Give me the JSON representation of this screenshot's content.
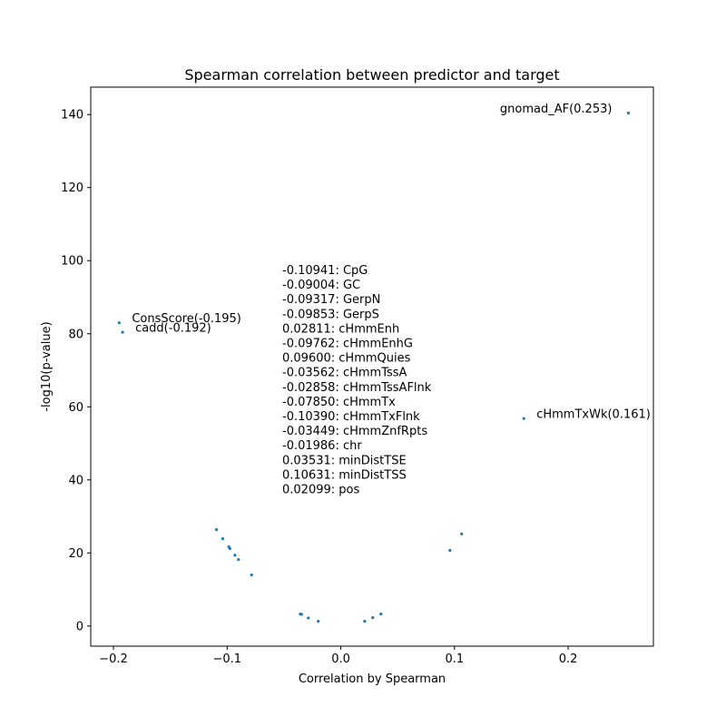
{
  "chart_data": {
    "type": "scatter",
    "title": "Spearman correlation between predictor and target",
    "xlabel": "Correlation by Spearman",
    "ylabel": "-log10(p-value)",
    "xlim": [
      -0.22,
      0.275
    ],
    "ylim": [
      -5.5,
      147.5
    ],
    "xticks": [
      -0.2,
      -0.1,
      0.0,
      0.1,
      0.2
    ],
    "xtick_labels": [
      "−0.2",
      "−0.1",
      "0.0",
      "0.1",
      "0.2"
    ],
    "yticks": [
      0,
      20,
      40,
      60,
      80,
      100,
      120,
      140
    ],
    "ytick_labels": [
      "0",
      "20",
      "40",
      "60",
      "80",
      "100",
      "120",
      "140"
    ],
    "grid": false,
    "series_color": "#1f77b4",
    "points": [
      {
        "x": -0.10941,
        "y": 26.4
      },
      {
        "x": -0.09004,
        "y": 18.2
      },
      {
        "x": -0.09317,
        "y": 19.4
      },
      {
        "x": -0.09853,
        "y": 21.7
      },
      {
        "x": 0.02811,
        "y": 2.3
      },
      {
        "x": -0.09762,
        "y": 21.2
      },
      {
        "x": 0.096,
        "y": 20.7
      },
      {
        "x": -0.03562,
        "y": 3.3
      },
      {
        "x": -0.02858,
        "y": 2.2
      },
      {
        "x": -0.0785,
        "y": 14.0
      },
      {
        "x": -0.1039,
        "y": 23.9
      },
      {
        "x": -0.03449,
        "y": 3.2
      },
      {
        "x": -0.01986,
        "y": 1.3
      },
      {
        "x": 0.03531,
        "y": 3.3
      },
      {
        "x": 0.10631,
        "y": 25.2
      },
      {
        "x": 0.02099,
        "y": 1.3
      },
      {
        "x": -0.195,
        "y": 83.0
      },
      {
        "x": -0.192,
        "y": 80.4
      },
      {
        "x": 0.253,
        "y": 140.4
      },
      {
        "x": 0.161,
        "y": 56.8
      }
    ],
    "annotations": [
      {
        "text": "ConsScore(-0.195)",
        "x": -0.195,
        "y": 83.0,
        "anchor": "start"
      },
      {
        "text": "cadd(-0.192)",
        "x": -0.192,
        "y": 80.4,
        "anchor": "start"
      },
      {
        "text": "gnomad_AF(0.253)",
        "x": 0.253,
        "y": 140.4,
        "anchor": "end"
      },
      {
        "text": "cHmmTxWk(0.161)",
        "x": 0.161,
        "y": 56.8,
        "anchor": "start"
      }
    ],
    "correlation_list": [
      "-0.10941: CpG",
      "-0.09004: GC",
      "-0.09317: GerpN",
      "-0.09853: GerpS",
      "0.02811: cHmmEnh",
      "-0.09762: cHmmEnhG",
      "0.09600: cHmmQuies",
      "-0.03562: cHmmTssA",
      "-0.02858: cHmmTssAFlnk",
      "-0.07850: cHmmTx",
      "-0.10390: cHmmTxFlnk",
      "-0.03449: cHmmZnfRpts",
      "-0.01986: chr",
      "0.03531: minDistTSE",
      "0.10631: minDistTSS",
      "0.02099: pos"
    ]
  }
}
